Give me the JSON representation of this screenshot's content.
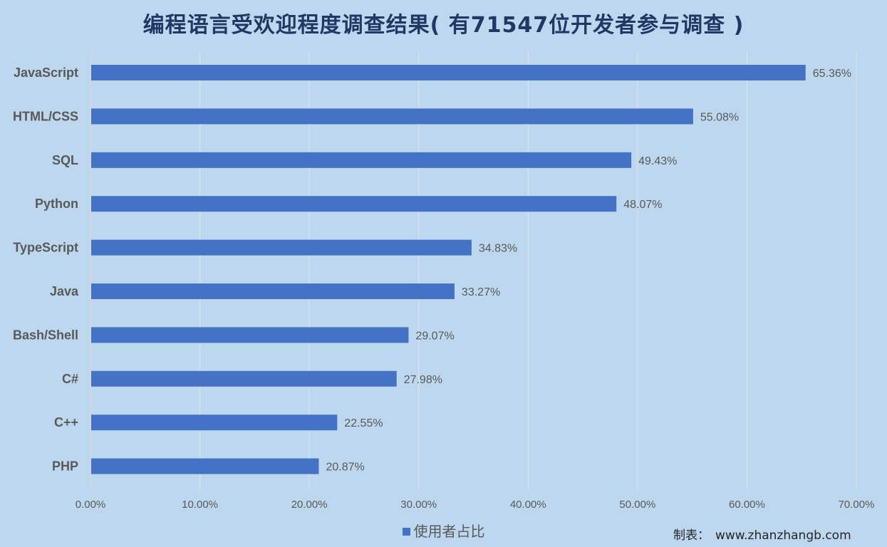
{
  "chart_data": {
    "type": "bar",
    "orientation": "horizontal",
    "title": "编程语言受欢迎程度调查结果( 有71547位开发者参与调查 )",
    "categories": [
      "JavaScript",
      "HTML/CSS",
      "SQL",
      "Python",
      "TypeScript",
      "Java",
      "Bash/Shell",
      "C#",
      "C++",
      "PHP"
    ],
    "series": [
      {
        "name": "使用者占比",
        "values": [
          65.36,
          55.08,
          49.43,
          48.07,
          34.83,
          33.27,
          29.07,
          27.98,
          22.55,
          20.87
        ],
        "data_labels": [
          "65.36%",
          "55.08%",
          "49.43%",
          "48.07%",
          "34.83%",
          "33.27%",
          "29.07%",
          "27.98%",
          "22.55%",
          "20.87%"
        ]
      }
    ],
    "xlim": [
      0,
      70
    ],
    "xticks": [
      "0.00%",
      "10.00%",
      "20.00%",
      "30.00%",
      "40.00%",
      "50.00%",
      "60.00%",
      "70.00%"
    ],
    "grid": true,
    "legend": "bottom",
    "colors": {
      "bar": "#4472c4",
      "background": "#bdd7ee",
      "grid": "#dce6f0",
      "title": "#1f3864"
    }
  },
  "credit": {
    "label": "制表：",
    "site": "www.zhanzhangb.com"
  }
}
